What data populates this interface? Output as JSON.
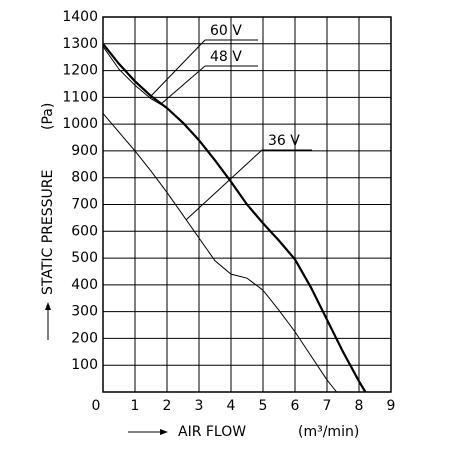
{
  "chart_data": {
    "type": "line",
    "y_label": "STATIC PRESSURE",
    "y_unit": "(Pa)",
    "x_label": "AIR FLOW",
    "x_unit": "(m³/min)",
    "xlim": [
      0,
      9
    ],
    "xticks": [
      0,
      1,
      2,
      3,
      4,
      5,
      6,
      7,
      8,
      9
    ],
    "ylim": [
      0,
      1400
    ],
    "yticks": [
      100,
      200,
      300,
      400,
      500,
      600,
      700,
      800,
      900,
      1000,
      1100,
      1200,
      1300,
      1400
    ],
    "grid": true,
    "series": [
      {
        "name": "60 V",
        "color": "#000",
        "width": 2.2,
        "x": [
          0,
          0.5,
          1,
          1.5,
          2,
          2.5,
          3,
          3.5,
          4,
          4.5,
          5,
          5.5,
          6,
          6.5,
          7,
          7.5,
          8,
          8.2
        ],
        "values": [
          1300,
          1225,
          1160,
          1105,
          1060,
          1005,
          940,
          865,
          785,
          700,
          630,
          565,
          495,
          390,
          270,
          150,
          40,
          0
        ]
      },
      {
        "name": "48 V",
        "color": "#000",
        "width": 1,
        "x": [
          0,
          0.5,
          1,
          1.5,
          2
        ],
        "values": [
          1290,
          1205,
          1145,
          1095,
          1060
        ]
      },
      {
        "name": "36 V",
        "color": "#000",
        "width": 1,
        "x": [
          0,
          0.5,
          1,
          1.5,
          2,
          2.5,
          3,
          3.5,
          4,
          4.5,
          5,
          5.5,
          6,
          6.5,
          7,
          7.3
        ],
        "values": [
          1040,
          970,
          900,
          825,
          745,
          660,
          575,
          490,
          440,
          425,
          380,
          305,
          225,
          135,
          45,
          0
        ]
      }
    ]
  }
}
